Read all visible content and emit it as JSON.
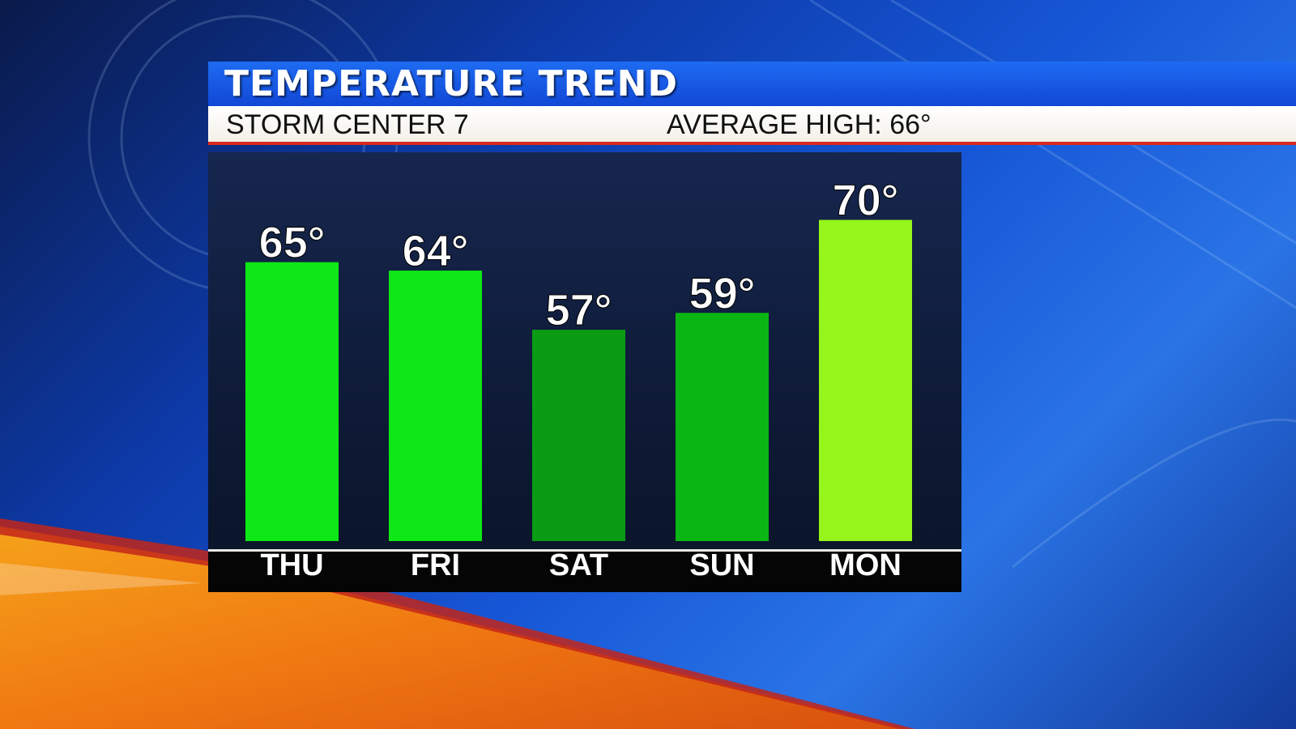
{
  "header": {
    "title": "TEMPERATURE TREND",
    "station": "STORM CENTER 7",
    "average_high_label": "AVERAGE HIGH:",
    "average_high_value": "66°"
  },
  "chart_data": {
    "type": "bar",
    "title": "TEMPERATURE TREND",
    "categories": [
      "THU",
      "FRI",
      "SAT",
      "SUN",
      "MON"
    ],
    "values": [
      65,
      64,
      57,
      59,
      70
    ],
    "value_labels": [
      "65°",
      "64°",
      "57°",
      "59°",
      "70°"
    ],
    "colors": [
      "#0ee816",
      "#0ee816",
      "#0a9c14",
      "#0ab614",
      "#96f51a"
    ],
    "ylim": [
      32,
      78
    ],
    "grid": false,
    "xlabel": "",
    "ylabel": ""
  }
}
